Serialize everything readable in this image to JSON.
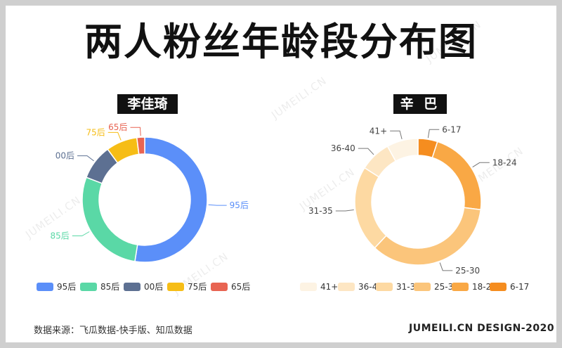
{
  "title": "两人粉丝年龄段分布图",
  "footer": {
    "source": "数据来源：飞瓜数据-快手版、知瓜数据",
    "credit": "JUMEILI.CN DESIGN-2020"
  },
  "watermark_text": "JUMEILI.CN",
  "chart_data": [
    {
      "type": "pie",
      "title": "李佳琦",
      "categories": [
        "95后",
        "85后",
        "00后",
        "75后",
        "65后"
      ],
      "values": [
        52,
        28,
        9,
        8,
        2
      ],
      "colors": [
        "#5b8ff9",
        "#5ad8a6",
        "#5d7092",
        "#f6bd16",
        "#e86452"
      ],
      "legend_position": "bottom"
    },
    {
      "type": "pie",
      "title": "辛 巴",
      "categories": [
        "41+",
        "36-40",
        "31-35",
        "25-30",
        "18-24",
        "6-17"
      ],
      "values": [
        8,
        8,
        22,
        35,
        22,
        5
      ],
      "colors": [
        "#fdf3e3",
        "#fde6c3",
        "#fdd9a2",
        "#fbc57b",
        "#f9a845",
        "#f58d1f"
      ],
      "legend_position": "bottom"
    }
  ]
}
